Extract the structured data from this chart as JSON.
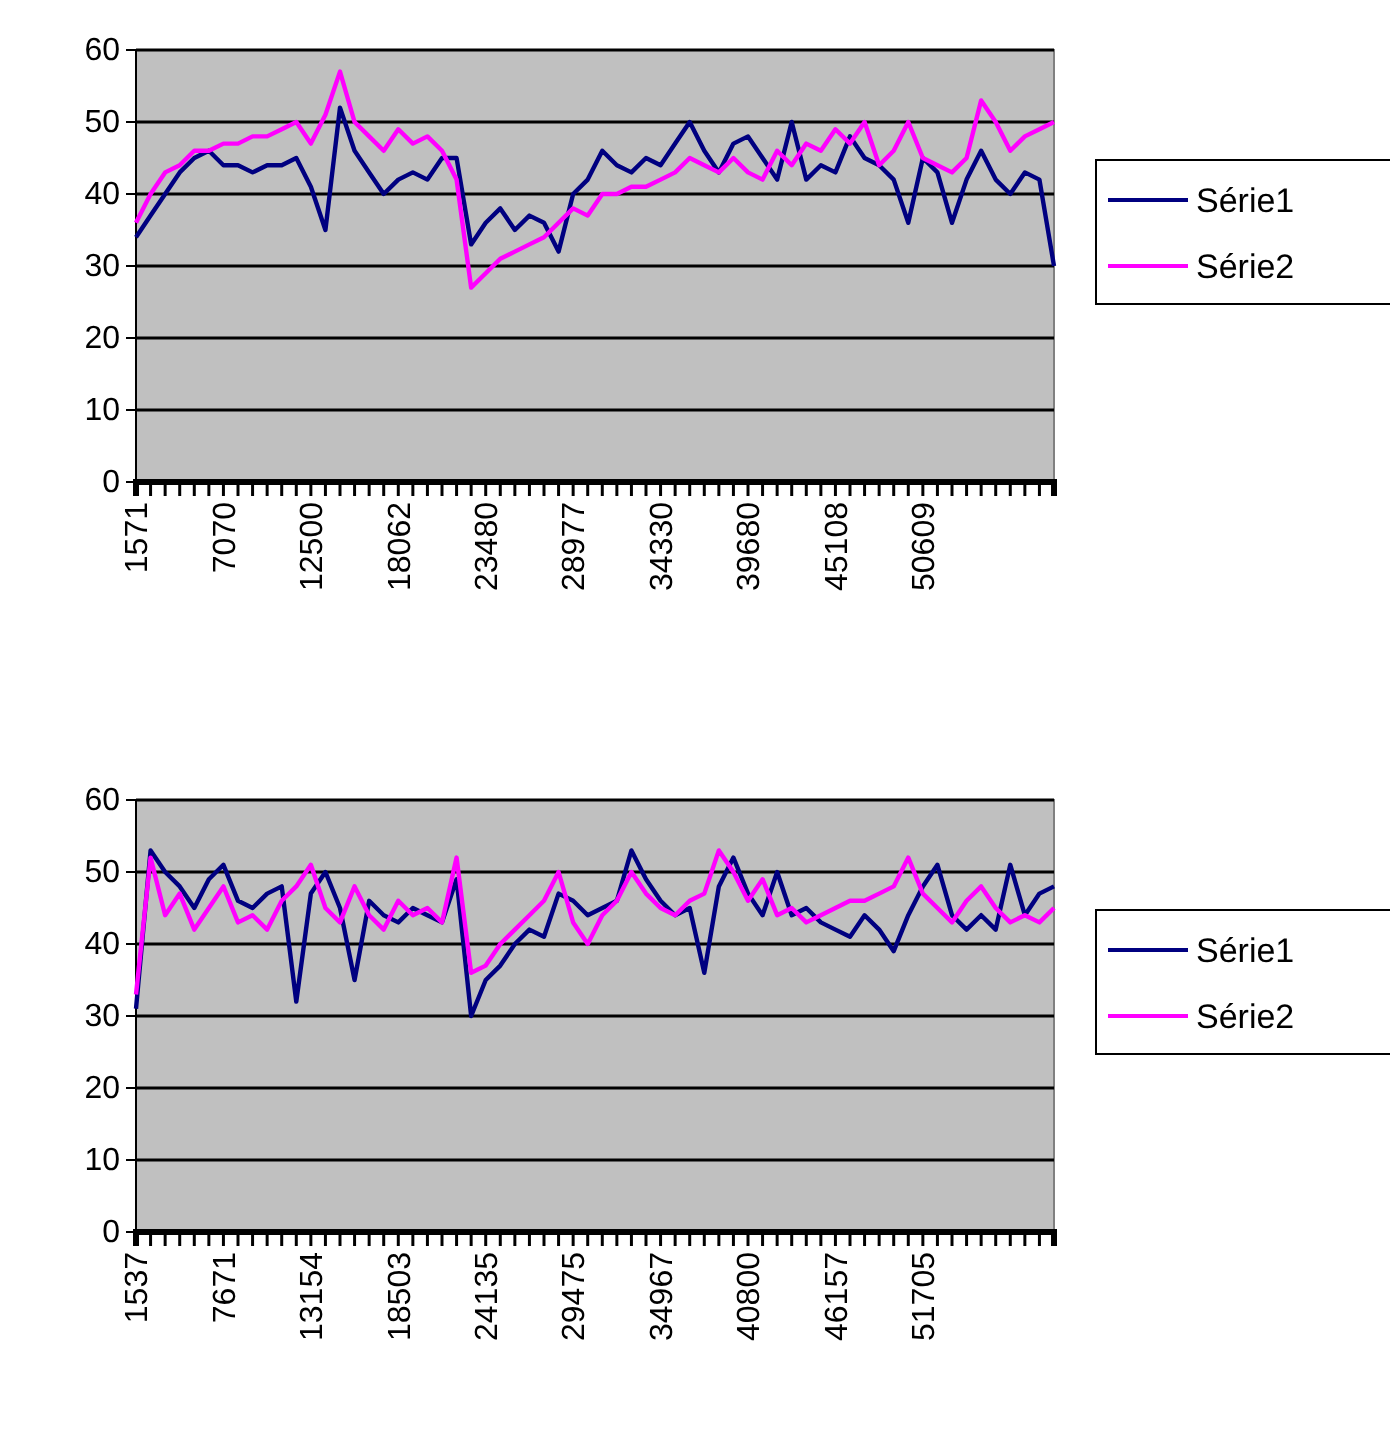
{
  "chart_data": [
    {
      "type": "line",
      "categories": [
        "1571",
        null,
        null,
        null,
        null,
        null,
        "7070",
        null,
        null,
        null,
        null,
        null,
        "12500",
        null,
        null,
        null,
        null,
        null,
        "18062",
        null,
        null,
        null,
        null,
        null,
        "23480",
        null,
        null,
        null,
        null,
        null,
        "28977",
        null,
        null,
        null,
        null,
        null,
        "34330",
        null,
        null,
        null,
        null,
        null,
        "39680",
        null,
        null,
        null,
        null,
        null,
        "45108",
        null,
        null,
        null,
        null,
        null,
        "50609",
        null,
        null,
        null,
        null,
        null,
        null,
        null,
        null,
        null
      ],
      "series": [
        {
          "name": "Série1",
          "color": "#000080",
          "values": [
            34,
            37,
            40,
            43,
            45,
            46,
            44,
            44,
            43,
            44,
            44,
            45,
            41,
            35,
            52,
            46,
            43,
            40,
            42,
            43,
            42,
            45,
            45,
            33,
            36,
            38,
            35,
            37,
            36,
            32,
            40,
            42,
            46,
            44,
            43,
            45,
            44,
            47,
            50,
            46,
            43,
            47,
            48,
            45,
            42,
            50,
            42,
            44,
            43,
            48,
            45,
            44,
            42,
            36,
            45,
            43,
            36,
            42,
            46,
            42,
            40,
            43,
            42,
            30
          ]
        },
        {
          "name": "Série2",
          "color": "#ff00ff",
          "values": [
            36,
            40,
            43,
            44,
            46,
            46,
            47,
            47,
            48,
            48,
            49,
            50,
            47,
            51,
            57,
            50,
            48,
            46,
            49,
            47,
            48,
            46,
            42,
            27,
            29,
            31,
            32,
            33,
            34,
            36,
            38,
            37,
            40,
            40,
            41,
            41,
            42,
            43,
            45,
            44,
            43,
            45,
            43,
            42,
            46,
            44,
            47,
            46,
            49,
            47,
            50,
            44,
            46,
            50,
            45,
            44,
            43,
            45,
            53,
            50,
            46,
            48,
            49,
            50
          ]
        }
      ],
      "ylim": [
        0,
        60
      ],
      "yticks": [
        0,
        10,
        20,
        30,
        40,
        50,
        60
      ],
      "grid": "y",
      "legend": "right"
    },
    {
      "type": "line",
      "categories": [
        "1537",
        null,
        null,
        null,
        null,
        null,
        "7671",
        null,
        null,
        null,
        null,
        null,
        "13154",
        null,
        null,
        null,
        null,
        null,
        "18503",
        null,
        null,
        null,
        null,
        null,
        "24135",
        null,
        null,
        null,
        null,
        null,
        "29475",
        null,
        null,
        null,
        null,
        null,
        "34967",
        null,
        null,
        null,
        null,
        null,
        "40800",
        null,
        null,
        null,
        null,
        null,
        "46157",
        null,
        null,
        null,
        null,
        null,
        "51705",
        null,
        null,
        null,
        null,
        null,
        null,
        null,
        null,
        null
      ],
      "series": [
        {
          "name": "Série1",
          "color": "#000080",
          "values": [
            31,
            53,
            50,
            48,
            45,
            49,
            51,
            46,
            45,
            47,
            48,
            32,
            47,
            50,
            45,
            35,
            46,
            44,
            43,
            45,
            44,
            43,
            49,
            30,
            35,
            37,
            40,
            42,
            41,
            47,
            46,
            44,
            45,
            46,
            53,
            49,
            46,
            44,
            45,
            36,
            48,
            52,
            47,
            44,
            50,
            44,
            45,
            43,
            42,
            41,
            44,
            42,
            39,
            44,
            48,
            51,
            44,
            42,
            44,
            42,
            51,
            44,
            47,
            48
          ]
        },
        {
          "name": "Série2",
          "color": "#ff00ff",
          "values": [
            33,
            52,
            44,
            47,
            42,
            45,
            48,
            43,
            44,
            42,
            46,
            48,
            51,
            45,
            43,
            48,
            44,
            42,
            46,
            44,
            45,
            43,
            52,
            36,
            37,
            40,
            42,
            44,
            46,
            50,
            43,
            40,
            44,
            46,
            50,
            47,
            45,
            44,
            46,
            47,
            53,
            50,
            46,
            49,
            44,
            45,
            43,
            44,
            45,
            46,
            46,
            47,
            48,
            52,
            47,
            45,
            43,
            46,
            48,
            45,
            43,
            44,
            43,
            45
          ]
        }
      ],
      "ylim": [
        0,
        60
      ],
      "yticks": [
        0,
        10,
        20,
        30,
        40,
        50,
        60
      ],
      "grid": "y",
      "legend": "right"
    }
  ]
}
